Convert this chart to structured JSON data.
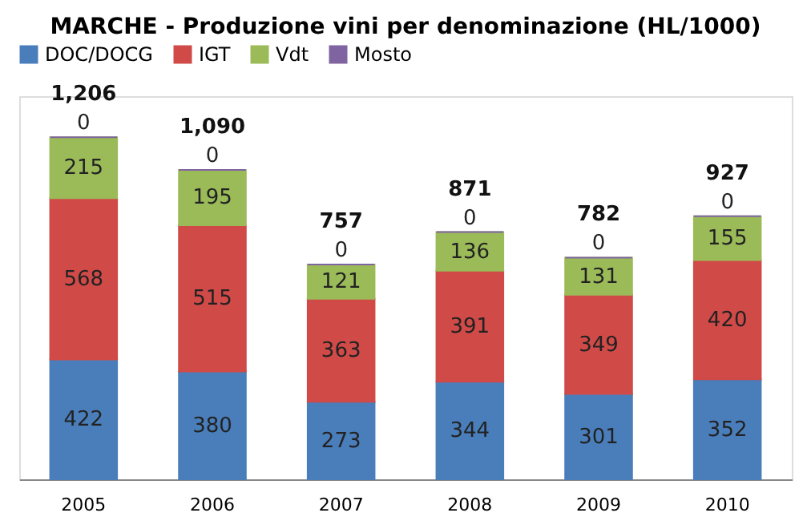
{
  "chart_data": {
    "type": "bar",
    "title": "MARCHE - Produzione vini per denominazione (HL/1000)",
    "categories": [
      "2005",
      "2006",
      "2007",
      "2008",
      "2009",
      "2010"
    ],
    "stacked": true,
    "series": [
      {
        "name": "DOC/DOCG",
        "color": "#4a7ebb",
        "values": [
          422,
          380,
          273,
          344,
          301,
          352
        ]
      },
      {
        "name": "IGT",
        "color": "#d04a48",
        "values": [
          568,
          515,
          363,
          391,
          349,
          420
        ]
      },
      {
        "name": "Vdt",
        "color": "#9bbb59",
        "values": [
          215,
          195,
          121,
          136,
          131,
          155
        ]
      },
      {
        "name": "Mosto",
        "color": "#8064a2",
        "values": [
          0,
          0,
          0,
          0,
          0,
          0
        ]
      }
    ],
    "totals": [
      "1,206",
      "1,090",
      "757",
      "871",
      "782",
      "927"
    ],
    "data_labels": true,
    "legend": "top",
    "grid": false
  }
}
